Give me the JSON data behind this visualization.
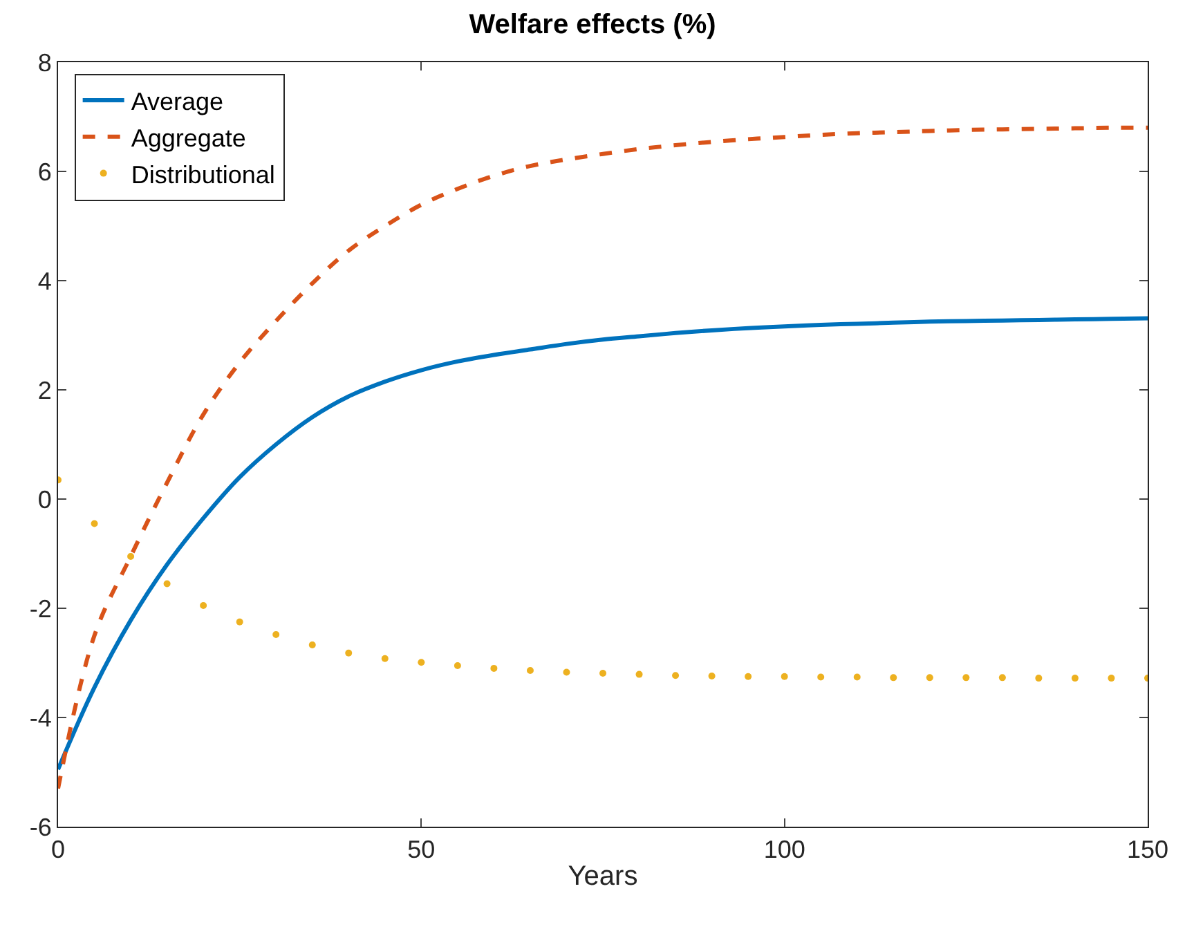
{
  "chart_data": {
    "type": "line",
    "title": "Welfare effects (%)",
    "xlabel": "Years",
    "x": [
      0,
      5,
      10,
      15,
      20,
      25,
      30,
      35,
      40,
      45,
      50,
      55,
      60,
      65,
      70,
      75,
      80,
      85,
      90,
      95,
      100,
      105,
      110,
      115,
      120,
      125,
      130,
      135,
      140,
      145,
      150
    ],
    "series": [
      {
        "name": "Average",
        "color": "#0072bd",
        "line_style": "solid",
        "values": [
          -4.95,
          -3.45,
          -2.22,
          -1.2,
          -0.35,
          0.4,
          1.0,
          1.5,
          1.88,
          2.15,
          2.36,
          2.52,
          2.64,
          2.74,
          2.84,
          2.92,
          2.98,
          3.04,
          3.09,
          3.13,
          3.16,
          3.19,
          3.21,
          3.23,
          3.25,
          3.26,
          3.27,
          3.28,
          3.29,
          3.3,
          3.31
        ]
      },
      {
        "name": "Aggregate",
        "color": "#d95319",
        "line_style": "dashed",
        "values": [
          -5.3,
          -2.5,
          -1.05,
          0.3,
          1.55,
          2.5,
          3.26,
          3.95,
          4.55,
          5.0,
          5.39,
          5.68,
          5.92,
          6.1,
          6.22,
          6.32,
          6.41,
          6.48,
          6.54,
          6.59,
          6.63,
          6.67,
          6.7,
          6.72,
          6.74,
          6.76,
          6.77,
          6.78,
          6.79,
          6.8,
          6.8
        ]
      },
      {
        "name": "Distributional",
        "color": "#edb120",
        "type": "scatter",
        "marker": "circle",
        "values": [
          0.35,
          -0.45,
          -1.05,
          -1.55,
          -1.95,
          -2.25,
          -2.48,
          -2.67,
          -2.82,
          -2.92,
          -2.99,
          -3.05,
          -3.1,
          -3.14,
          -3.17,
          -3.19,
          -3.21,
          -3.23,
          -3.24,
          -3.25,
          -3.25,
          -3.26,
          -3.26,
          -3.27,
          -3.27,
          -3.27,
          -3.27,
          -3.28,
          -3.28,
          -3.28,
          -3.28
        ]
      }
    ],
    "xlim": [
      0,
      150
    ],
    "xticks": [
      0,
      50,
      100,
      150
    ],
    "ylim": [
      -6,
      8
    ],
    "yticks": [
      -6,
      -4,
      -2,
      0,
      2,
      4,
      6,
      8
    ],
    "legend": "top left"
  }
}
